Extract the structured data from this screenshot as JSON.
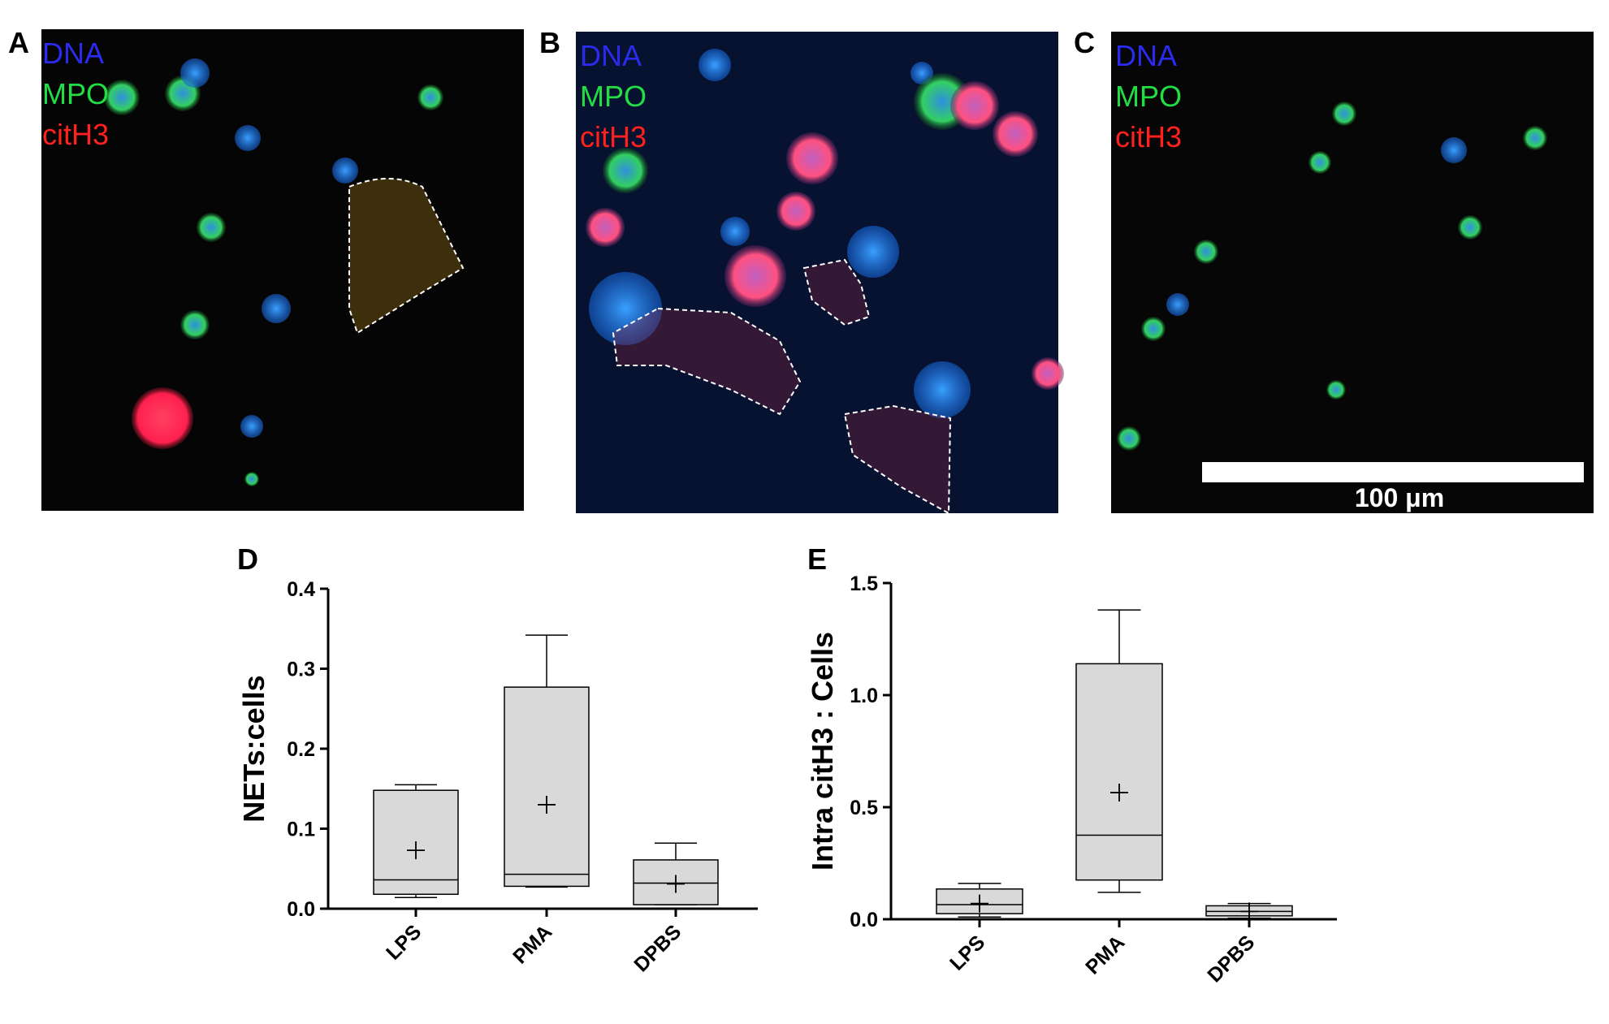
{
  "panels": [
    {
      "label": "A",
      "stains": [
        {
          "text": "DNA",
          "color": "#2b2bf0"
        },
        {
          "text": "MPO",
          "color": "#22dd44"
        },
        {
          "text": "citH3",
          "color": "#ff2020"
        }
      ]
    },
    {
      "label": "B",
      "stains": [
        {
          "text": "DNA",
          "color": "#2b2bf0"
        },
        {
          "text": "MPO",
          "color": "#22dd44"
        },
        {
          "text": "citH3",
          "color": "#ff2020"
        }
      ]
    },
    {
      "label": "C",
      "stains": [
        {
          "text": "DNA",
          "color": "#2b2bf0"
        },
        {
          "text": "MPO",
          "color": "#22dd44"
        },
        {
          "text": "citH3",
          "color": "#ff2020"
        }
      ],
      "scale_bar": "100 μm"
    }
  ],
  "chart_data": [
    {
      "type": "box",
      "panel": "D",
      "ylabel": "NETs:cells",
      "color": "#d9d9d9",
      "categories": [
        "LPS",
        "PMA",
        "DPBS"
      ],
      "min": [
        0.014,
        0.027,
        0.005
      ],
      "q1": [
        0.018,
        0.028,
        0.005
      ],
      "median": [
        0.036,
        0.043,
        0.032
      ],
      "q3": [
        0.148,
        0.277,
        0.061
      ],
      "max": [
        0.155,
        0.342,
        0.082
      ],
      "mean": [
        0.073,
        0.13,
        0.031
      ],
      "ylim": [
        0,
        0.4
      ],
      "yticks": [
        {
          "value": 0,
          "label": "0.0"
        },
        0.1,
        0.2,
        0.3,
        0.4
      ]
    },
    {
      "type": "box",
      "panel": "E",
      "ylabel": "Intra citH3 : Cells",
      "color": "#d9d9d9",
      "categories": [
        "LPS",
        "PMA",
        "DPBS"
      ],
      "min": [
        0.01,
        0.12,
        0.005
      ],
      "q1": [
        0.025,
        0.175,
        0.015
      ],
      "median": [
        0.065,
        0.375,
        0.035
      ],
      "q3": [
        0.135,
        1.14,
        0.06
      ],
      "max": [
        0.16,
        1.38,
        0.07
      ],
      "mean": [
        0.07,
        0.565,
        0.035
      ],
      "ylim": [
        0,
        1.5
      ],
      "yticks": [
        {
          "value": 0,
          "label": "0.0"
        },
        0.5,
        {
          "value": 1,
          "label": "1.0"
        },
        1.5
      ]
    }
  ]
}
